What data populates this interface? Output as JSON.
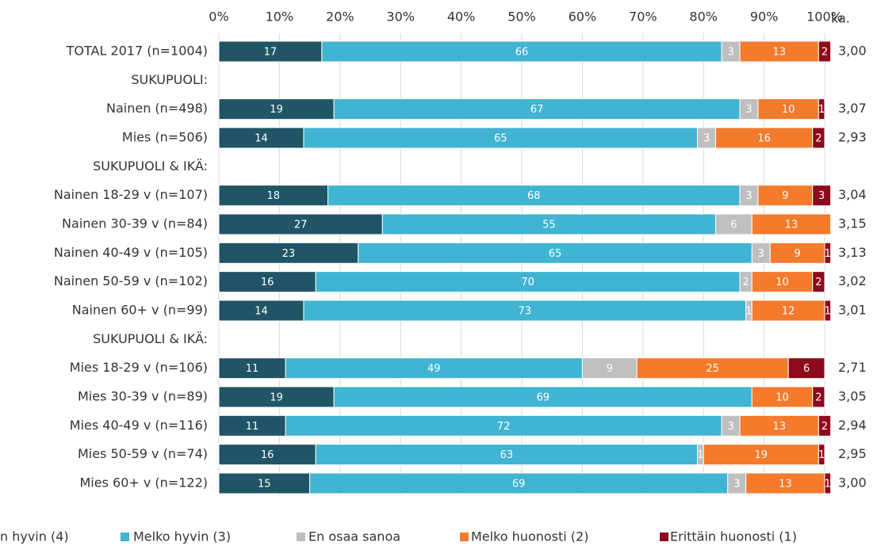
{
  "chart_data": {
    "type": "stacked_barh",
    "categories": [
      "TOTAL 2017 (n=1004)",
      "SUKUPUOLI:",
      "Nainen (n=498)",
      "Mies (n=506)",
      "SUKUPUOLI & IKÄ:",
      "Nainen 18-29 v (n=107)",
      "Nainen 30-39 v (n=84)",
      "Nainen 40-49 v (n=105)",
      "Nainen 50-59 v (n=102)",
      "Nainen 60+ v (n=99)",
      "SUKUPUOLI & IKÄ:",
      "Mies 18-29 v (n=106)",
      "Mies 30-39 v (n=89)",
      "Mies 40-49 v (n=116)",
      "Mies 50-59 v (n=74)",
      "Mies 60+ v (n=122)"
    ],
    "series": [
      {
        "name": "n hyvin (4)",
        "color": "#1f5566",
        "values": [
          17,
          null,
          19,
          14,
          null,
          18,
          27,
          23,
          16,
          14,
          null,
          11,
          19,
          11,
          16,
          15
        ]
      },
      {
        "name": "Melko hyvin (3)",
        "color": "#40b4d2",
        "values": [
          66,
          null,
          67,
          65,
          null,
          68,
          55,
          65,
          70,
          73,
          null,
          49,
          69,
          72,
          63,
          69
        ]
      },
      {
        "name": "En osaa sanoa",
        "color": "#bfbfbf",
        "values": [
          3,
          null,
          3,
          3,
          null,
          3,
          6,
          3,
          2,
          1,
          null,
          9,
          null,
          3,
          1,
          3
        ]
      },
      {
        "name": "Melko huonosti (2)",
        "color": "#f47a2c",
        "values": [
          13,
          null,
          10,
          16,
          null,
          9,
          13,
          9,
          10,
          12,
          null,
          25,
          10,
          13,
          19,
          13
        ]
      },
      {
        "name": "Erittäin huonosti (1)",
        "color": "#8c0a1c",
        "values": [
          2,
          null,
          1,
          2,
          null,
          3,
          null,
          1,
          2,
          1,
          null,
          6,
          2,
          2,
          1,
          1
        ]
      }
    ],
    "xlim": [
      0,
      100
    ],
    "xticks": [
      {
        "value": 0,
        "label": "0%"
      },
      {
        "value": 10,
        "label": "10%"
      },
      {
        "value": 20,
        "label": "20%"
      },
      {
        "value": 30,
        "label": "30%"
      },
      {
        "value": 40,
        "label": "40%"
      },
      {
        "value": 50,
        "label": "50%"
      },
      {
        "value": 60,
        "label": "60%"
      },
      {
        "value": 70,
        "label": "70%"
      },
      {
        "value": 80,
        "label": "80%"
      },
      {
        "value": 90,
        "label": "90%"
      },
      {
        "value": 100,
        "label": "100%"
      }
    ],
    "grid": true,
    "mean_header": "ka.",
    "means": [
      "3,00",
      null,
      "3,07",
      "2,93",
      null,
      "3,04",
      "3,15",
      "3,13",
      "3,02",
      "3,01",
      null,
      "2,71",
      "3,05",
      "2,94",
      "2,95",
      "3,00"
    ]
  }
}
